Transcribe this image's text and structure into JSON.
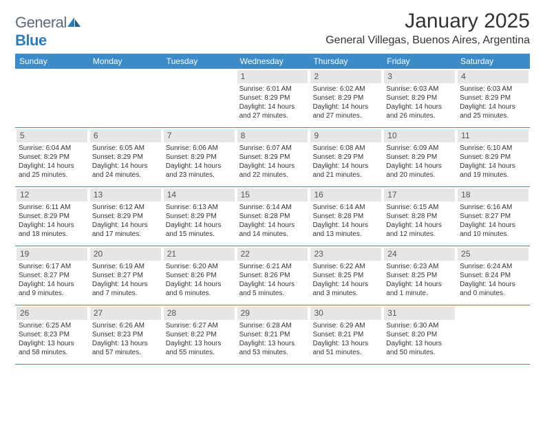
{
  "brand": {
    "name_part1": "General",
    "name_part2": "Blue"
  },
  "title": "January 2025",
  "location": "General Villegas, Buenos Aires, Argentina",
  "colors": {
    "header_blue": "#3b8bc9",
    "daynum_bg": "#e6e6e6",
    "text": "#333333",
    "logo_gray": "#5d6a78",
    "logo_blue": "#2b7bbd"
  },
  "days_of_week": [
    "Sunday",
    "Monday",
    "Tuesday",
    "Wednesday",
    "Thursday",
    "Friday",
    "Saturday"
  ],
  "weeks": [
    [
      {
        "n": "",
        "sunrise": "",
        "sunset": "",
        "daylight": ""
      },
      {
        "n": "",
        "sunrise": "",
        "sunset": "",
        "daylight": ""
      },
      {
        "n": "",
        "sunrise": "",
        "sunset": "",
        "daylight": ""
      },
      {
        "n": "1",
        "sunrise": "Sunrise: 6:01 AM",
        "sunset": "Sunset: 8:29 PM",
        "daylight": "Daylight: 14 hours and 27 minutes."
      },
      {
        "n": "2",
        "sunrise": "Sunrise: 6:02 AM",
        "sunset": "Sunset: 8:29 PM",
        "daylight": "Daylight: 14 hours and 27 minutes."
      },
      {
        "n": "3",
        "sunrise": "Sunrise: 6:03 AM",
        "sunset": "Sunset: 8:29 PM",
        "daylight": "Daylight: 14 hours and 26 minutes."
      },
      {
        "n": "4",
        "sunrise": "Sunrise: 6:03 AM",
        "sunset": "Sunset: 8:29 PM",
        "daylight": "Daylight: 14 hours and 25 minutes."
      }
    ],
    [
      {
        "n": "5",
        "sunrise": "Sunrise: 6:04 AM",
        "sunset": "Sunset: 8:29 PM",
        "daylight": "Daylight: 14 hours and 25 minutes."
      },
      {
        "n": "6",
        "sunrise": "Sunrise: 6:05 AM",
        "sunset": "Sunset: 8:29 PM",
        "daylight": "Daylight: 14 hours and 24 minutes."
      },
      {
        "n": "7",
        "sunrise": "Sunrise: 6:06 AM",
        "sunset": "Sunset: 8:29 PM",
        "daylight": "Daylight: 14 hours and 23 minutes."
      },
      {
        "n": "8",
        "sunrise": "Sunrise: 6:07 AM",
        "sunset": "Sunset: 8:29 PM",
        "daylight": "Daylight: 14 hours and 22 minutes."
      },
      {
        "n": "9",
        "sunrise": "Sunrise: 6:08 AM",
        "sunset": "Sunset: 8:29 PM",
        "daylight": "Daylight: 14 hours and 21 minutes."
      },
      {
        "n": "10",
        "sunrise": "Sunrise: 6:09 AM",
        "sunset": "Sunset: 8:29 PM",
        "daylight": "Daylight: 14 hours and 20 minutes."
      },
      {
        "n": "11",
        "sunrise": "Sunrise: 6:10 AM",
        "sunset": "Sunset: 8:29 PM",
        "daylight": "Daylight: 14 hours and 19 minutes."
      }
    ],
    [
      {
        "n": "12",
        "sunrise": "Sunrise: 6:11 AM",
        "sunset": "Sunset: 8:29 PM",
        "daylight": "Daylight: 14 hours and 18 minutes."
      },
      {
        "n": "13",
        "sunrise": "Sunrise: 6:12 AM",
        "sunset": "Sunset: 8:29 PM",
        "daylight": "Daylight: 14 hours and 17 minutes."
      },
      {
        "n": "14",
        "sunrise": "Sunrise: 6:13 AM",
        "sunset": "Sunset: 8:29 PM",
        "daylight": "Daylight: 14 hours and 15 minutes."
      },
      {
        "n": "15",
        "sunrise": "Sunrise: 6:14 AM",
        "sunset": "Sunset: 8:28 PM",
        "daylight": "Daylight: 14 hours and 14 minutes."
      },
      {
        "n": "16",
        "sunrise": "Sunrise: 6:14 AM",
        "sunset": "Sunset: 8:28 PM",
        "daylight": "Daylight: 14 hours and 13 minutes."
      },
      {
        "n": "17",
        "sunrise": "Sunrise: 6:15 AM",
        "sunset": "Sunset: 8:28 PM",
        "daylight": "Daylight: 14 hours and 12 minutes."
      },
      {
        "n": "18",
        "sunrise": "Sunrise: 6:16 AM",
        "sunset": "Sunset: 8:27 PM",
        "daylight": "Daylight: 14 hours and 10 minutes."
      }
    ],
    [
      {
        "n": "19",
        "sunrise": "Sunrise: 6:17 AM",
        "sunset": "Sunset: 8:27 PM",
        "daylight": "Daylight: 14 hours and 9 minutes."
      },
      {
        "n": "20",
        "sunrise": "Sunrise: 6:19 AM",
        "sunset": "Sunset: 8:27 PM",
        "daylight": "Daylight: 14 hours and 7 minutes."
      },
      {
        "n": "21",
        "sunrise": "Sunrise: 6:20 AM",
        "sunset": "Sunset: 8:26 PM",
        "daylight": "Daylight: 14 hours and 6 minutes."
      },
      {
        "n": "22",
        "sunrise": "Sunrise: 6:21 AM",
        "sunset": "Sunset: 8:26 PM",
        "daylight": "Daylight: 14 hours and 5 minutes."
      },
      {
        "n": "23",
        "sunrise": "Sunrise: 6:22 AM",
        "sunset": "Sunset: 8:25 PM",
        "daylight": "Daylight: 14 hours and 3 minutes."
      },
      {
        "n": "24",
        "sunrise": "Sunrise: 6:23 AM",
        "sunset": "Sunset: 8:25 PM",
        "daylight": "Daylight: 14 hours and 1 minute."
      },
      {
        "n": "25",
        "sunrise": "Sunrise: 6:24 AM",
        "sunset": "Sunset: 8:24 PM",
        "daylight": "Daylight: 14 hours and 0 minutes."
      }
    ],
    [
      {
        "n": "26",
        "sunrise": "Sunrise: 6:25 AM",
        "sunset": "Sunset: 8:23 PM",
        "daylight": "Daylight: 13 hours and 58 minutes."
      },
      {
        "n": "27",
        "sunrise": "Sunrise: 6:26 AM",
        "sunset": "Sunset: 8:23 PM",
        "daylight": "Daylight: 13 hours and 57 minutes."
      },
      {
        "n": "28",
        "sunrise": "Sunrise: 6:27 AM",
        "sunset": "Sunset: 8:22 PM",
        "daylight": "Daylight: 13 hours and 55 minutes."
      },
      {
        "n": "29",
        "sunrise": "Sunrise: 6:28 AM",
        "sunset": "Sunset: 8:21 PM",
        "daylight": "Daylight: 13 hours and 53 minutes."
      },
      {
        "n": "30",
        "sunrise": "Sunrise: 6:29 AM",
        "sunset": "Sunset: 8:21 PM",
        "daylight": "Daylight: 13 hours and 51 minutes."
      },
      {
        "n": "31",
        "sunrise": "Sunrise: 6:30 AM",
        "sunset": "Sunset: 8:20 PM",
        "daylight": "Daylight: 13 hours and 50 minutes."
      },
      {
        "n": "",
        "sunrise": "",
        "sunset": "",
        "daylight": ""
      }
    ]
  ]
}
